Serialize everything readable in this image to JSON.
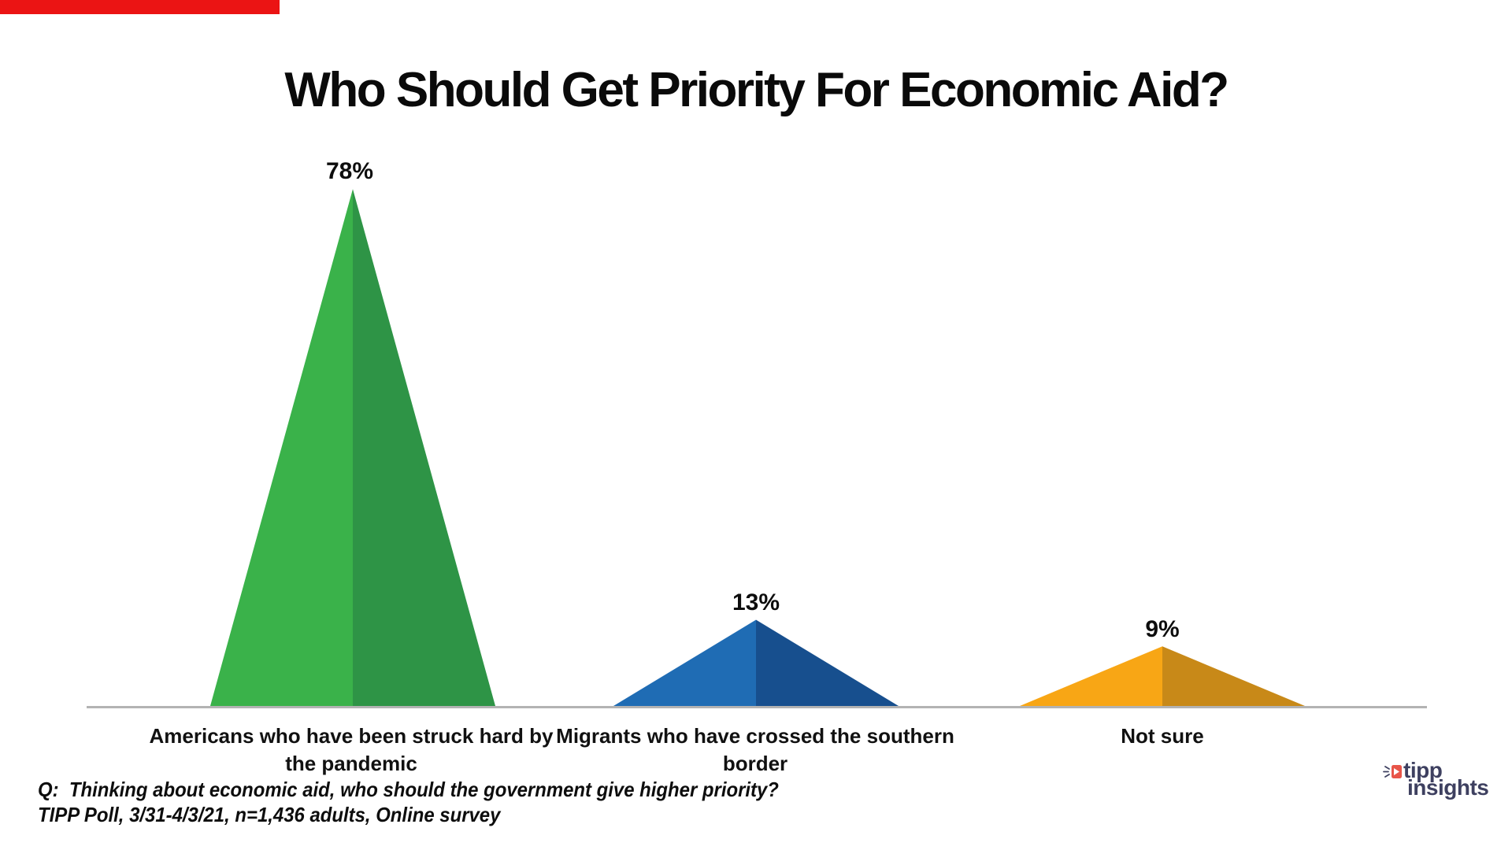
{
  "title": "Who Should Get Priority For Economic Aid?",
  "top_bar": {
    "color": "#EB1414"
  },
  "chart_data": {
    "type": "bar",
    "variant": "triangle-peaks",
    "title": "Who Should Get Priority For Economic Aid?",
    "categories": [
      "Americans who have been struck hard by the pandemic",
      "Migrants who have crossed the southern border",
      "Not sure"
    ],
    "categories_lines": [
      [
        "Americans who have been struck hard by",
        "the pandemic"
      ],
      [
        "Migrants who have crossed the southern",
        "border"
      ],
      [
        "Not sure"
      ]
    ],
    "values": [
      78,
      13,
      9
    ],
    "series": [
      {
        "name": "Americans who have been struck hard by the pandemic",
        "value": 78,
        "label": "78%",
        "color_left": "#3AB24A",
        "color_right": "#2E9446"
      },
      {
        "name": "Migrants who have crossed the southern border",
        "value": 13,
        "label": "13%",
        "color_left": "#1F6CB4",
        "color_right": "#174F8E"
      },
      {
        "name": "Not sure",
        "value": 9,
        "label": "9%",
        "color_left": "#F8A615",
        "color_right": "#C88918"
      }
    ],
    "ylim": [
      0,
      78
    ],
    "grid": false,
    "legend": false,
    "baseline_color": "#B3B3B3"
  },
  "footer": {
    "question": "Q:  Thinking about economic aid, who should the government give higher priority?",
    "source": "TIPP Poll, 3/31-4/3/21, n=1,436 adults, Online survey"
  },
  "logo": {
    "word1": "tipp",
    "word2": "insights",
    "icon": "arrow-icon",
    "text_color": "#3E4060",
    "icon_color": "#E85549"
  }
}
